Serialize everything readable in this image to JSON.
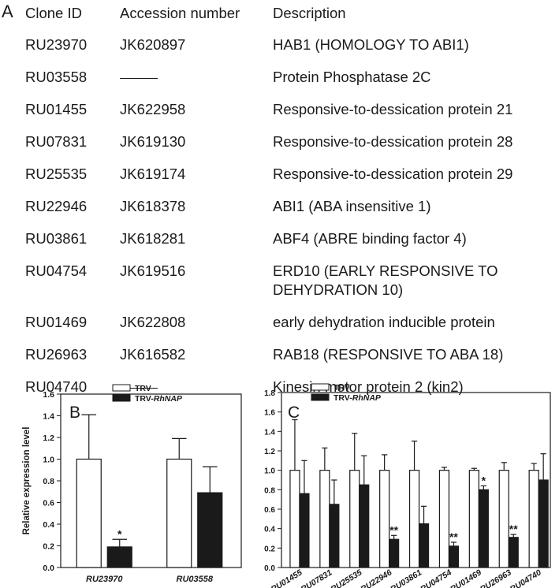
{
  "panel_a": {
    "letter": "A",
    "headers": [
      "Clone ID",
      "Accession number",
      "Description"
    ],
    "rows": [
      {
        "clone": "RU23970",
        "accession": "JK620897",
        "description": "HAB1 (HOMOLOGY TO ABI1)"
      },
      {
        "clone": "RU03558",
        "accession": "",
        "description": "Protein Phosphatase 2C"
      },
      {
        "clone": "RU01455",
        "accession": "JK622958",
        "description": "Responsive-to-dessication protein 21"
      },
      {
        "clone": "RU07831",
        "accession": "JK619130",
        "description": "Responsive-to-dessication protein 28"
      },
      {
        "clone": "RU25535",
        "accession": "JK619174",
        "description": "Responsive-to-dessication protein 29"
      },
      {
        "clone": "RU22946",
        "accession": "JK618378",
        "description": "ABI1 (ABA insensitive 1)"
      },
      {
        "clone": "RU03861",
        "accession": "JK618281",
        "description": "ABF4 (ABRE binding factor 4)"
      },
      {
        "clone": "RU04754",
        "accession": "JK619516",
        "description": "ERD10 (EARLY RESPONSIVE TO DEHYDRATION 10)"
      },
      {
        "clone": "RU01469",
        "accession": "JK622808",
        "description": "early dehydration inducible protein"
      },
      {
        "clone": "RU26963",
        "accession": "JK616582",
        "description": "RAB18 (RESPONSIVE TO ABA 18)"
      },
      {
        "clone": "RU04740",
        "accession": "",
        "description": "Kinesin motor protein 2 (kin2)"
      }
    ]
  },
  "chart_data": [
    {
      "panel": "B",
      "type": "bar",
      "ylabel": "Relative expression level",
      "ylim": [
        0,
        1.6
      ],
      "yticks": [
        "0.0",
        "0.2",
        "0.4",
        "0.6",
        "0.8",
        "1.0",
        "1.2",
        "1.4",
        "1.6"
      ],
      "categories": [
        "RU23970",
        "RU03558"
      ],
      "series": [
        {
          "name": "TRV",
          "color": "#ffffff",
          "values": [
            1.0,
            1.0
          ],
          "errors": [
            0.41,
            0.19
          ]
        },
        {
          "name": "TRV-RhNAP",
          "color": "#1a1a1a",
          "values": [
            0.19,
            0.69
          ],
          "errors": [
            0.07,
            0.24
          ]
        }
      ],
      "significance": [
        {
          "category": "RU23970",
          "series": "TRV-RhNAP",
          "label": "*"
        }
      ],
      "legend": "top"
    },
    {
      "panel": "C",
      "type": "bar",
      "ylabel": "",
      "ylim": [
        0,
        1.8
      ],
      "yticks": [
        "0.0",
        "0.2",
        "0.4",
        "0.6",
        "0.8",
        "1.0",
        "1.2",
        "1.4",
        "1.6",
        "1.8"
      ],
      "categories": [
        "RU01455",
        "RU07831",
        "RU25535",
        "RU22946",
        "RU03861",
        "RU04754",
        "RU01469",
        "RU26963",
        "RU04740"
      ],
      "series": [
        {
          "name": "TRV",
          "color": "#ffffff",
          "values": [
            1.0,
            1.0,
            1.0,
            1.0,
            1.0,
            1.0,
            1.0,
            1.0,
            1.0
          ],
          "errors": [
            0.52,
            0.23,
            0.38,
            0.16,
            0.3,
            0.03,
            0.02,
            0.08,
            0.07
          ]
        },
        {
          "name": "TRV-RhNAP",
          "color": "#1a1a1a",
          "values": [
            0.76,
            0.65,
            0.85,
            0.29,
            0.45,
            0.22,
            0.8,
            0.31,
            0.9
          ],
          "errors": [
            0.34,
            0.25,
            0.3,
            0.04,
            0.18,
            0.04,
            0.04,
            0.03,
            0.27
          ]
        }
      ],
      "significance": [
        {
          "category": "RU22946",
          "series": "TRV-RhNAP",
          "label": "**"
        },
        {
          "category": "RU04754",
          "series": "TRV-RhNAP",
          "label": "**"
        },
        {
          "category": "RU01469",
          "series": "TRV-RhNAP",
          "label": "*"
        },
        {
          "category": "RU26963",
          "series": "TRV-RhNAP",
          "label": "**"
        }
      ],
      "legend": "top-left"
    }
  ]
}
